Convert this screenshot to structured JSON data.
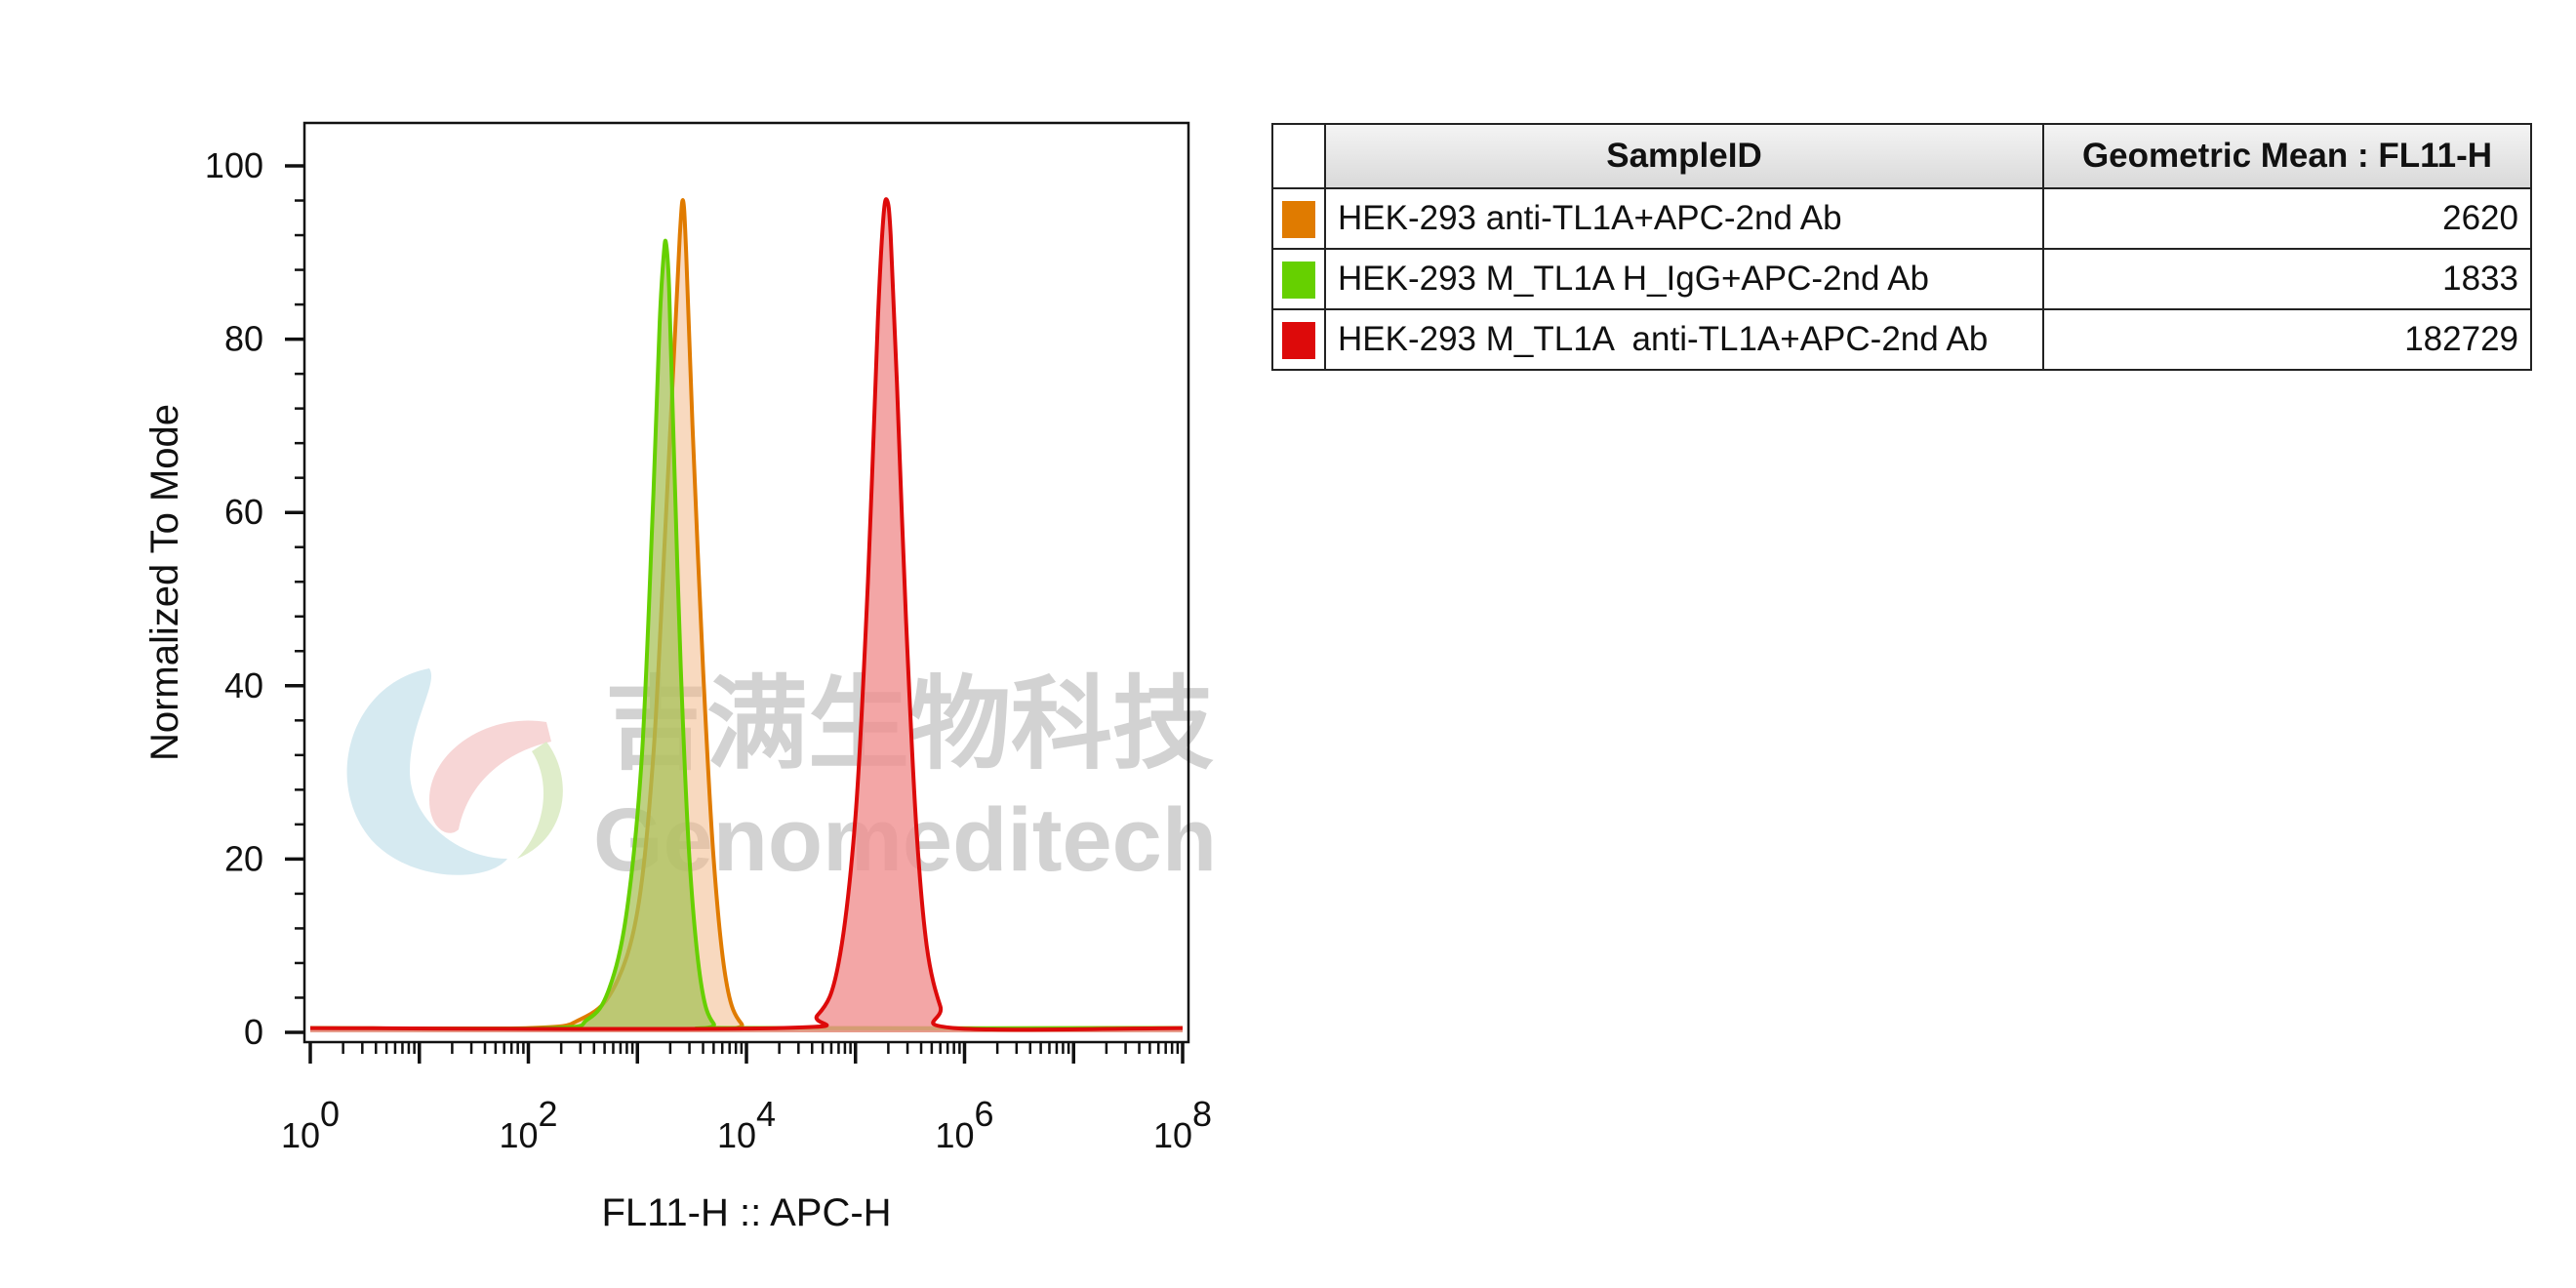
{
  "chart_data": {
    "type": "area",
    "title": "",
    "xlabel": "FL11-H :: APC-H",
    "ylabel": "Normalized To Mode",
    "x_scale": "log10",
    "xlim": [
      1,
      100000000
    ],
    "ylim": [
      0,
      100
    ],
    "yticks": [
      0,
      20,
      40,
      60,
      80,
      100
    ],
    "xticks": [
      {
        "value": 1,
        "base": "10",
        "exp": "0"
      },
      {
        "value": 100,
        "base": "10",
        "exp": "2"
      },
      {
        "value": 10000,
        "base": "10",
        "exp": "4"
      },
      {
        "value": 1000000,
        "base": "10",
        "exp": "6"
      },
      {
        "value": 100000000,
        "base": "10",
        "exp": "8"
      }
    ],
    "grid": false,
    "legend_placement": "right table",
    "series": [
      {
        "name": "HEK-293 anti-TL1A+APC-2nd Ab",
        "color": "#e07b00",
        "fill": "#f2b98a",
        "geometric_mean": "2620",
        "x": [
          1,
          100,
          300,
          600,
          1000,
          1400,
          1800,
          2200,
          2450,
          2620,
          2800,
          3200,
          4000,
          5000,
          6500,
          9000,
          15000,
          100000000
        ],
        "y": [
          0.5,
          0.5,
          1.5,
          5,
          14,
          32,
          58,
          80,
          92,
          96,
          90,
          70,
          42,
          20,
          6,
          1,
          0.5,
          0.5
        ]
      },
      {
        "name": "HEK-293 M_TL1A H_IgG+APC-2nd Ab",
        "color": "#66d000",
        "fill": "#a8c15a",
        "geometric_mean": "1833",
        "x": [
          1,
          150,
          350,
          550,
          800,
          1100,
          1400,
          1600,
          1750,
          1833,
          1950,
          2150,
          2500,
          3000,
          3800,
          5000,
          8000,
          100000000
        ],
        "y": [
          0.5,
          0.5,
          1.5,
          5,
          14,
          32,
          62,
          82,
          90,
          91,
          86,
          68,
          42,
          20,
          6,
          1,
          0.5,
          0.5
        ]
      },
      {
        "name": "HEK-293 M_TL1A  anti-TL1A+APC-2nd Ab",
        "color": "#dd0a0a",
        "fill": "#f09090",
        "geometric_mean": "182729",
        "x": [
          1,
          20000,
          45000,
          70000,
          100000,
          130000,
          160000,
          180000,
          195000,
          210000,
          240000,
          290000,
          360000,
          450000,
          600000,
          800000,
          100000000
        ],
        "y": [
          0.5,
          0.5,
          2,
          8,
          25,
          52,
          82,
          94,
          96,
          92,
          75,
          48,
          24,
          10,
          3,
          0.5,
          0.5
        ]
      }
    ]
  },
  "legend_table": {
    "header_sample": "SampleID",
    "header_value": "Geometric Mean : FL11-H"
  },
  "watermark": {
    "chinese": "吉满生物科技",
    "english": "Genomeditech"
  }
}
